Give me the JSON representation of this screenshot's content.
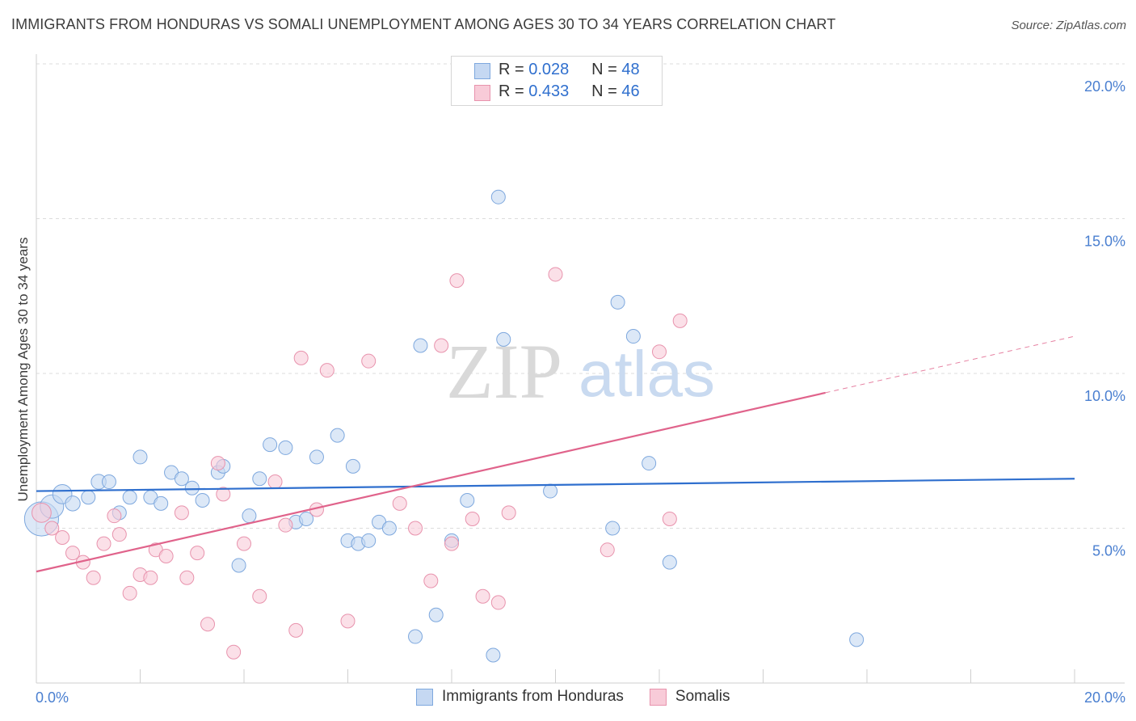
{
  "title": "IMMIGRANTS FROM HONDURAS VS SOMALI UNEMPLOYMENT AMONG AGES 30 TO 34 YEARS CORRELATION CHART",
  "source": "Source: ZipAtlas.com",
  "watermark": {
    "zip": "ZIP",
    "atlas": "atlas"
  },
  "legend": {
    "rows": [
      {
        "r_label": "R =",
        "r_value": "0.028",
        "n_label": "N =",
        "n_value": "48"
      },
      {
        "r_label": "R =",
        "r_value": "0.433",
        "n_label": "N =",
        "n_value": "46"
      }
    ]
  },
  "bottom_legend": {
    "honduras": "Immigrants from Honduras",
    "somalis": "Somalis"
  },
  "colors": {
    "blue_fill": "#c5d8f2",
    "blue_stroke": "#7ea8de",
    "blue_line": "#2f6fce",
    "pink_fill": "#f8cbd8",
    "pink_stroke": "#e893ad",
    "pink_line": "#e0638b",
    "axis_text": "#4a7fd0",
    "grid": "#dcdcdc"
  },
  "chart_data": {
    "type": "scatter",
    "title": "IMMIGRANTS FROM HONDURAS VS SOMALI UNEMPLOYMENT AMONG AGES 30 TO 34 YEARS CORRELATION CHART",
    "xlabel": "",
    "ylabel": "Unemployment Among Ages 30 to 34 years",
    "xlim": [
      0,
      20
    ],
    "ylim": [
      0,
      20
    ],
    "x_tick_labels": [
      "0.0%",
      "20.0%"
    ],
    "y_ticks": [
      {
        "value": 5,
        "label": "5.0%"
      },
      {
        "value": 10,
        "label": "10.0%"
      },
      {
        "value": 15,
        "label": "15.0%"
      },
      {
        "value": 20,
        "label": "20.0%"
      }
    ],
    "series": [
      {
        "name": "Immigrants from Honduras",
        "r": 0.028,
        "n": 48,
        "trend": {
          "x0": 0,
          "y0": 6.2,
          "x1": 20,
          "y1": 6.6,
          "dash_from_x": null
        },
        "points": [
          [
            0.1,
            5.3,
            1.6
          ],
          [
            0.3,
            5.7,
            1.1
          ],
          [
            0.5,
            6.1,
            0.9
          ],
          [
            0.7,
            5.8,
            0.7
          ],
          [
            1.0,
            6.0,
            0.6
          ],
          [
            1.2,
            6.5,
            0.7
          ],
          [
            1.4,
            6.5,
            0.6
          ],
          [
            1.6,
            5.5,
            0.6
          ],
          [
            1.8,
            6.0,
            0.6
          ],
          [
            2.0,
            7.3,
            0.6
          ],
          [
            2.2,
            6.0,
            0.6
          ],
          [
            2.4,
            5.8,
            0.6
          ],
          [
            2.6,
            6.8,
            0.6
          ],
          [
            2.8,
            6.6,
            0.6
          ],
          [
            3.0,
            6.3,
            0.6
          ],
          [
            3.2,
            5.9,
            0.6
          ],
          [
            3.5,
            6.8,
            0.6
          ],
          [
            3.6,
            7.0,
            0.6
          ],
          [
            3.9,
            3.8,
            0.6
          ],
          [
            4.1,
            5.4,
            0.6
          ],
          [
            4.3,
            6.6,
            0.6
          ],
          [
            4.5,
            7.7,
            0.6
          ],
          [
            4.8,
            7.6,
            0.6
          ],
          [
            5.0,
            5.2,
            0.6
          ],
          [
            5.2,
            5.3,
            0.6
          ],
          [
            5.4,
            7.3,
            0.6
          ],
          [
            5.8,
            8.0,
            0.6
          ],
          [
            6.1,
            7.0,
            0.6
          ],
          [
            6.0,
            4.6,
            0.6
          ],
          [
            6.2,
            4.5,
            0.6
          ],
          [
            6.4,
            4.6,
            0.6
          ],
          [
            6.6,
            5.2,
            0.6
          ],
          [
            6.8,
            5.0,
            0.6
          ],
          [
            7.3,
            1.5,
            0.6
          ],
          [
            7.4,
            10.9,
            0.6
          ],
          [
            7.7,
            2.2,
            0.6
          ],
          [
            8.0,
            4.6,
            0.6
          ],
          [
            8.3,
            5.9,
            0.6
          ],
          [
            8.8,
            0.9,
            0.6
          ],
          [
            9.0,
            11.1,
            0.6
          ],
          [
            8.9,
            15.7,
            0.6
          ],
          [
            9.9,
            6.2,
            0.6
          ],
          [
            11.2,
            12.3,
            0.6
          ],
          [
            11.1,
            5.0,
            0.6
          ],
          [
            11.5,
            11.2,
            0.6
          ],
          [
            11.8,
            7.1,
            0.6
          ],
          [
            12.2,
            3.9,
            0.6
          ],
          [
            15.8,
            1.4,
            0.6
          ]
        ]
      },
      {
        "name": "Somalis",
        "r": 0.433,
        "n": 46,
        "trend": {
          "x0": 0,
          "y0": 3.6,
          "x1": 20,
          "y1": 11.2,
          "dash_from_x": 15.2
        },
        "points": [
          [
            0.1,
            5.5,
            0.9
          ],
          [
            0.3,
            5.0,
            0.6
          ],
          [
            0.5,
            4.7,
            0.6
          ],
          [
            0.7,
            4.2,
            0.6
          ],
          [
            0.9,
            3.9,
            0.6
          ],
          [
            1.1,
            3.4,
            0.6
          ],
          [
            1.3,
            4.5,
            0.6
          ],
          [
            1.5,
            5.4,
            0.6
          ],
          [
            1.6,
            4.8,
            0.6
          ],
          [
            1.8,
            2.9,
            0.6
          ],
          [
            2.0,
            3.5,
            0.6
          ],
          [
            2.2,
            3.4,
            0.6
          ],
          [
            2.3,
            4.3,
            0.6
          ],
          [
            2.5,
            4.1,
            0.6
          ],
          [
            2.8,
            5.5,
            0.6
          ],
          [
            2.9,
            3.4,
            0.6
          ],
          [
            3.1,
            4.2,
            0.6
          ],
          [
            3.3,
            1.9,
            0.6
          ],
          [
            3.5,
            7.1,
            0.6
          ],
          [
            3.6,
            6.1,
            0.6
          ],
          [
            3.8,
            1.0,
            0.6
          ],
          [
            4.0,
            4.5,
            0.6
          ],
          [
            4.3,
            2.8,
            0.6
          ],
          [
            4.6,
            6.5,
            0.6
          ],
          [
            4.8,
            5.1,
            0.6
          ],
          [
            5.0,
            1.7,
            0.6
          ],
          [
            5.1,
            10.5,
            0.6
          ],
          [
            5.4,
            5.6,
            0.6
          ],
          [
            5.6,
            10.1,
            0.6
          ],
          [
            6.0,
            2.0,
            0.6
          ],
          [
            6.4,
            10.4,
            0.6
          ],
          [
            7.0,
            5.8,
            0.6
          ],
          [
            7.3,
            5.0,
            0.6
          ],
          [
            7.6,
            3.3,
            0.6
          ],
          [
            7.8,
            10.9,
            0.6
          ],
          [
            8.0,
            4.5,
            0.6
          ],
          [
            8.1,
            13.0,
            0.6
          ],
          [
            8.4,
            5.3,
            0.6
          ],
          [
            8.6,
            2.8,
            0.6
          ],
          [
            8.9,
            2.6,
            0.6
          ],
          [
            9.1,
            5.5,
            0.6
          ],
          [
            10.0,
            13.2,
            0.6
          ],
          [
            11.0,
            4.3,
            0.6
          ],
          [
            12.0,
            10.7,
            0.6
          ],
          [
            12.2,
            5.3,
            0.6
          ],
          [
            12.4,
            11.7,
            0.6
          ]
        ]
      }
    ]
  }
}
